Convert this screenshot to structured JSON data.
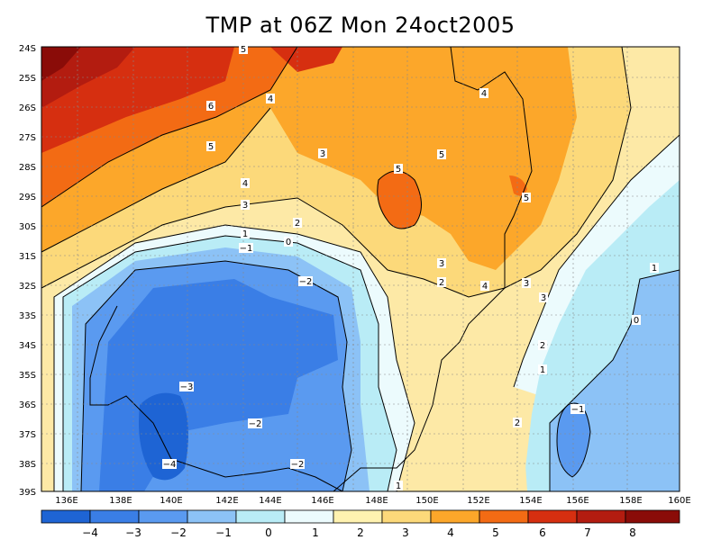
{
  "title": "TMP at 06Z Mon 24oct2005",
  "colors": {
    "ocean_bg": "#fde9a6",
    "band_colors": [
      "#1e64d4",
      "#3a7ee6",
      "#5a9af0",
      "#8cc2f6",
      "#b9ecf6",
      "#ecfbfd",
      "#fff2b0",
      "#fcd97a",
      "#fca72a",
      "#f36b14",
      "#d62f10",
      "#b31c10",
      "#8a0c08"
    ]
  },
  "axes": {
    "lon_ticks": [
      "136E",
      "138E",
      "140E",
      "142E",
      "144E",
      "146E",
      "148E",
      "150E",
      "152E",
      "154E",
      "156E",
      "158E",
      "160E"
    ],
    "lat_ticks": [
      "24S",
      "25S",
      "26S",
      "27S",
      "28S",
      "29S",
      "30S",
      "31S",
      "32S",
      "33S",
      "34S",
      "35S",
      "36S",
      "37S",
      "38S",
      "39S"
    ],
    "grid": true
  },
  "colorbar": {
    "labels": [
      "-4",
      "-3",
      "-2",
      "-1",
      "0",
      "1",
      "2",
      "3",
      "4",
      "5",
      "6",
      "7",
      "8"
    ]
  },
  "contour_labels": [
    "5",
    "6",
    "4",
    "4",
    "5",
    "5",
    "3",
    "5",
    "4",
    "5",
    "3",
    "2",
    "1",
    "0",
    "-1",
    "-2",
    "3",
    "2",
    "4",
    "3",
    "3",
    "-3",
    "-2",
    "-4",
    "-2",
    "2",
    "1",
    "-1",
    "0",
    "1",
    "2",
    "1"
  ]
}
